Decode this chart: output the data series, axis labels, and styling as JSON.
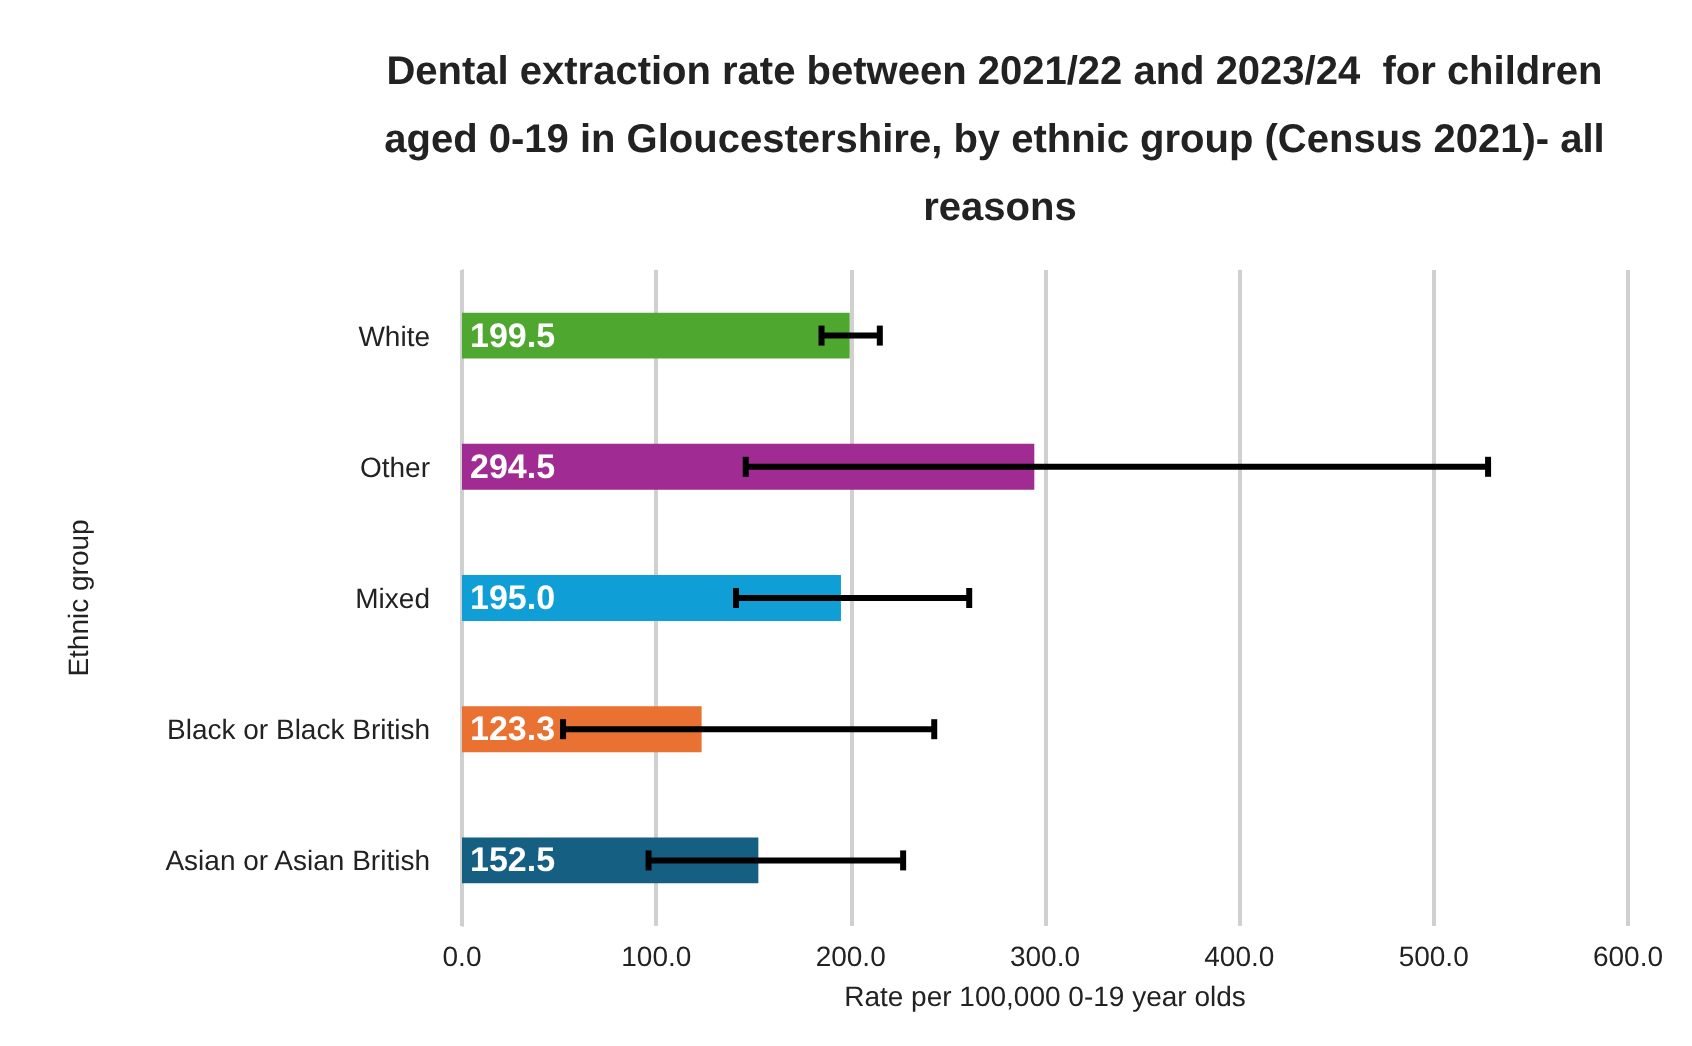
{
  "chart_data": {
    "type": "bar",
    "orientation": "horizontal",
    "title": "Dental extraction rate between 2021/22 and 2023/24  for children aged 0-19 in Gloucestershire, by ethnic group (Census 2021)- all reasons",
    "xlabel": "Rate per 100,000 0-19 year olds",
    "ylabel": "Ethnic group",
    "categories": [
      "White",
      "Other",
      "Mixed",
      "Black or Black British",
      "Asian or Asian British"
    ],
    "values": [
      199.5,
      294.5,
      195.0,
      123.3,
      152.5
    ],
    "value_labels": [
      "199.5",
      "294.5",
      "195.0",
      "123.3",
      "152.5"
    ],
    "colors": [
      "#4ea72e",
      "#a02b93",
      "#0f9ed5",
      "#e97132",
      "#156082"
    ],
    "errors": [
      [
        185,
        215
      ],
      [
        146,
        528
      ],
      [
        141,
        261
      ],
      [
        52,
        243
      ],
      [
        96,
        227
      ]
    ],
    "xlim": [
      0,
      600
    ],
    "xticks": [
      {
        "value": 0,
        "label": "0.0"
      },
      {
        "value": 100,
        "label": "100.0"
      },
      {
        "value": 200,
        "label": "200.0"
      },
      {
        "value": 300,
        "label": "300.0"
      },
      {
        "value": 400,
        "label": "400.0"
      },
      {
        "value": 500,
        "label": "500.0"
      },
      {
        "value": 600,
        "label": "600.0"
      }
    ],
    "grid": "x"
  }
}
